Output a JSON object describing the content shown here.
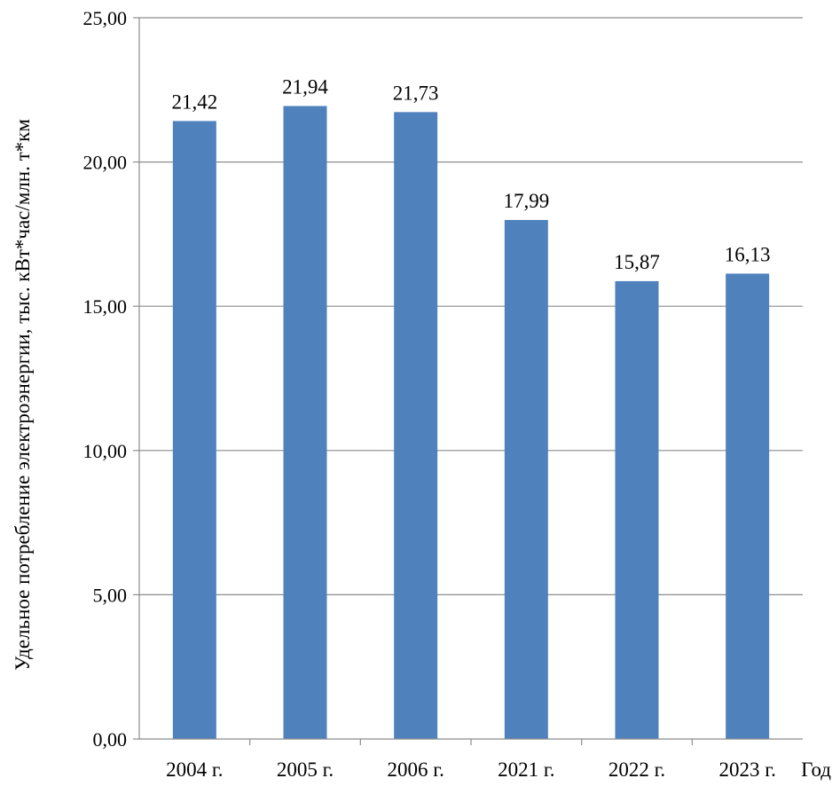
{
  "chart_data": {
    "type": "bar",
    "categories": [
      "2004 г.",
      "2005 г.",
      "2006 г.",
      "2021 г.",
      "2022 г.",
      "2023 г."
    ],
    "values": [
      21.42,
      21.94,
      21.73,
      17.99,
      15.87,
      16.13
    ],
    "data_labels": [
      "21,42",
      "21,94",
      "21,73",
      "17,99",
      "15,87",
      "16,13"
    ],
    "ylim": [
      0,
      25
    ],
    "yticks": [
      0,
      5,
      10,
      15,
      20,
      25
    ],
    "ytick_labels": [
      "0,00",
      "5,00",
      "10,00",
      "15,00",
      "20,00",
      "25,00"
    ],
    "xlabel": "Год",
    "ylabel": "Удельное потребление электроэнергии, тыс. кВт*час/млн. т*км",
    "grid": true,
    "bar_color": "#4f81bd",
    "grid_color": "#8c8c8c"
  }
}
